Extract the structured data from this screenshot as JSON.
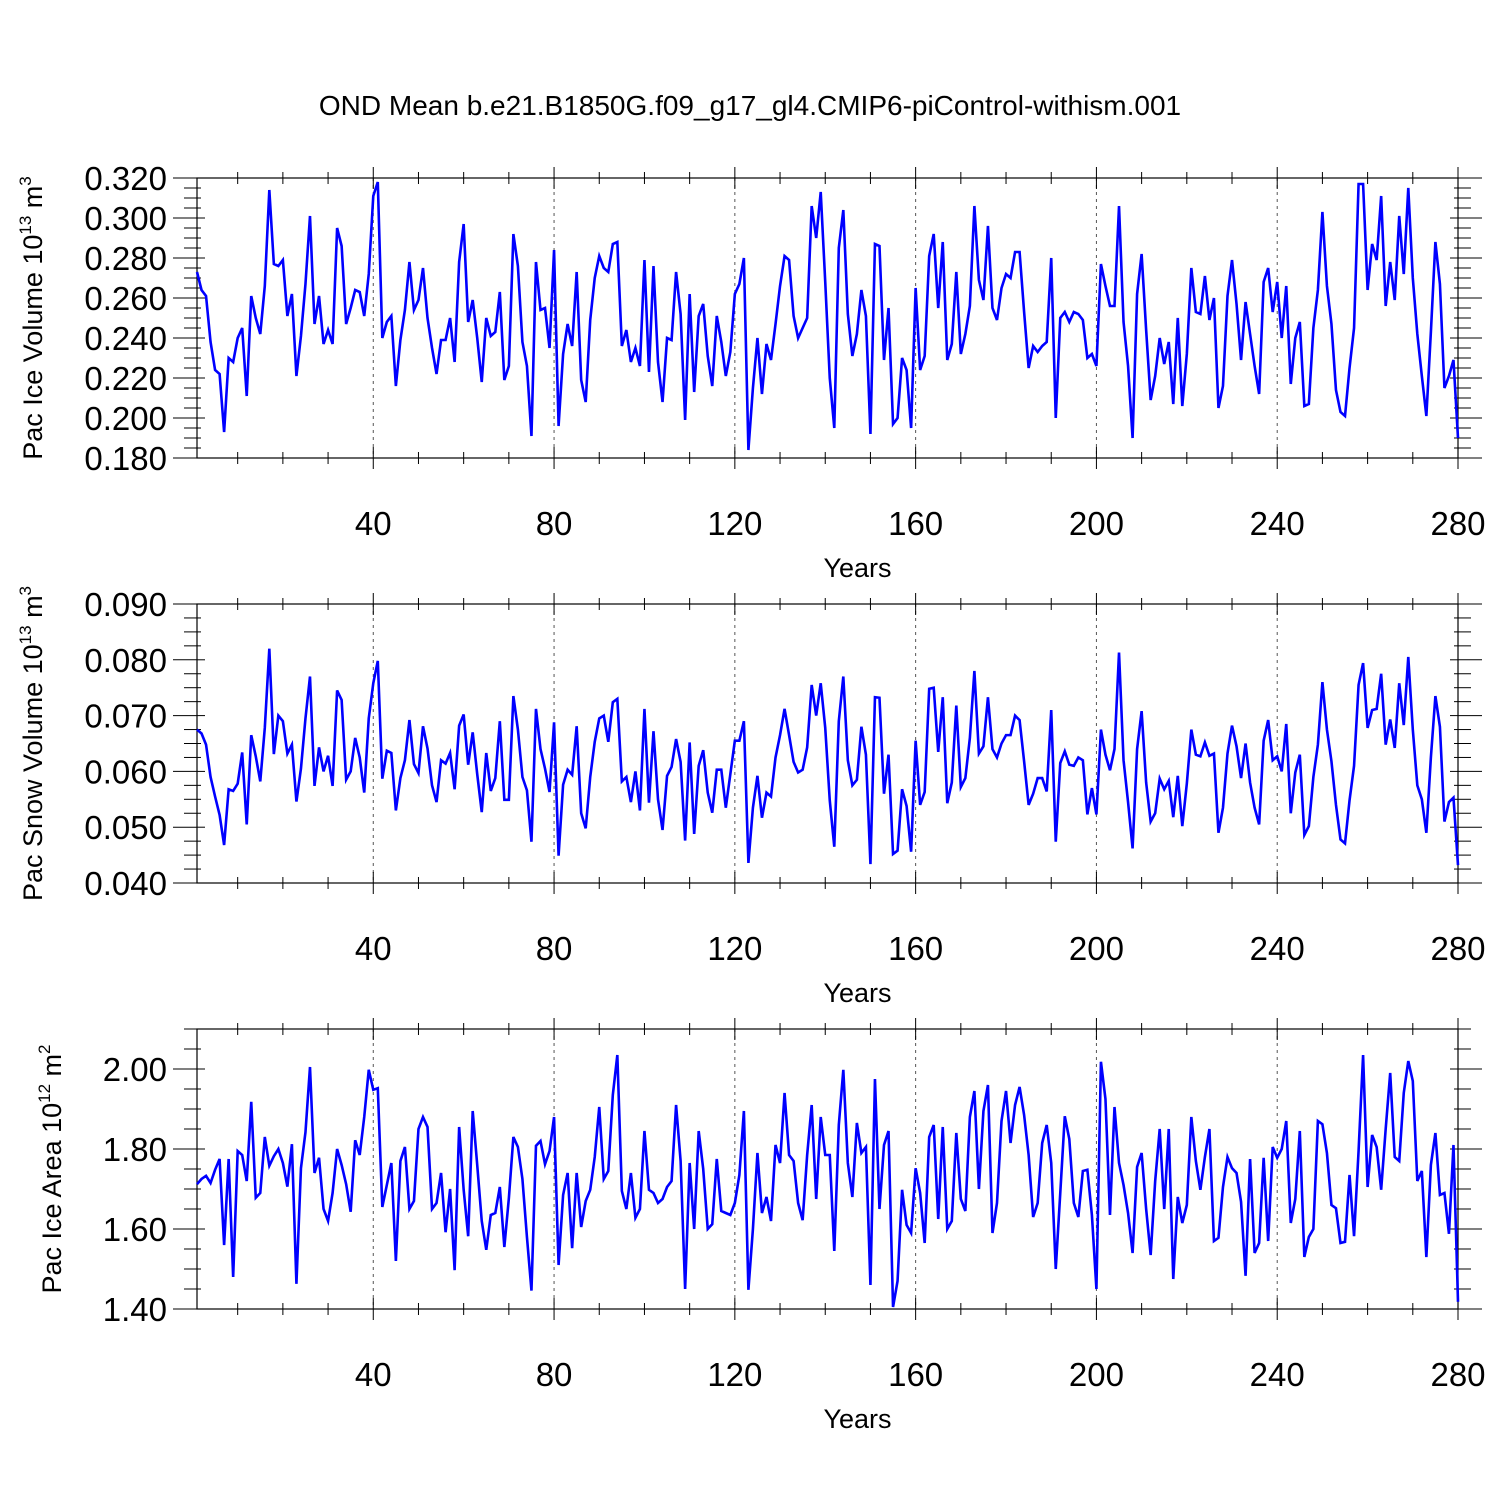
{
  "title": "OND Mean b.e21.B1850G.f09_g17_gl4.CMIP6-piControl-withism.001",
  "chart_data": [
    {
      "type": "line",
      "xlabel": "Years",
      "ylabel": {
        "main": "Pac Ice Volume 10",
        "exponent": "13",
        "unit": " m",
        "unit_exponent": "3"
      },
      "xlim": [
        1,
        280
      ],
      "ylim": [
        0.18,
        0.32
      ],
      "xticks": [
        40,
        80,
        120,
        160,
        200,
        240,
        280
      ],
      "yticks": [
        0.18,
        0.2,
        0.22,
        0.24,
        0.26,
        0.28,
        0.3,
        0.32
      ],
      "yticklabels": [
        "0.180",
        "0.200",
        "0.220",
        "0.240",
        "0.260",
        "0.280",
        "0.300",
        "0.320"
      ],
      "grid": "dashed vertical at major x ticks",
      "color": "#0000ff",
      "x_start": 1,
      "values": [
        0.273,
        0.264,
        0.261,
        0.238,
        0.224,
        0.222,
        0.193,
        0.23,
        0.228,
        0.24,
        0.245,
        0.211,
        0.261,
        0.25,
        0.242,
        0.266,
        0.314,
        0.277,
        0.276,
        0.279,
        0.251,
        0.262,
        0.221,
        0.241,
        0.267,
        0.301,
        0.247,
        0.261,
        0.237,
        0.244,
        0.237,
        0.295,
        0.286,
        0.247,
        0.255,
        0.264,
        0.263,
        0.251,
        0.272,
        0.311,
        0.318,
        0.24,
        0.248,
        0.251,
        0.216,
        0.239,
        0.254,
        0.278,
        0.254,
        0.259,
        0.275,
        0.25,
        0.235,
        0.222,
        0.239,
        0.239,
        0.25,
        0.228,
        0.278,
        0.297,
        0.248,
        0.259,
        0.24,
        0.218,
        0.25,
        0.241,
        0.243,
        0.263,
        0.219,
        0.226,
        0.292,
        0.276,
        0.238,
        0.226,
        0.191,
        0.278,
        0.254,
        0.255,
        0.235,
        0.284,
        0.196,
        0.232,
        0.247,
        0.236,
        0.273,
        0.219,
        0.208,
        0.249,
        0.27,
        0.281,
        0.275,
        0.273,
        0.287,
        0.288,
        0.236,
        0.244,
        0.228,
        0.235,
        0.226,
        0.279,
        0.223,
        0.276,
        0.228,
        0.208,
        0.24,
        0.239,
        0.273,
        0.252,
        0.199,
        0.262,
        0.213,
        0.251,
        0.257,
        0.231,
        0.216,
        0.251,
        0.238,
        0.221,
        0.233,
        0.262,
        0.267,
        0.28,
        0.184,
        0.215,
        0.24,
        0.212,
        0.237,
        0.229,
        0.247,
        0.266,
        0.281,
        0.279,
        0.251,
        0.24,
        0.245,
        0.25,
        0.306,
        0.29,
        0.313,
        0.268,
        0.22,
        0.195,
        0.285,
        0.304,
        0.252,
        0.231,
        0.242,
        0.264,
        0.251,
        0.192,
        0.287,
        0.286,
        0.229,
        0.255,
        0.197,
        0.2,
        0.23,
        0.224,
        0.195,
        0.265,
        0.224,
        0.231,
        0.281,
        0.292,
        0.255,
        0.288,
        0.229,
        0.237,
        0.273,
        0.232,
        0.242,
        0.256,
        0.306,
        0.269,
        0.259,
        0.296,
        0.255,
        0.249,
        0.265,
        0.272,
        0.27,
        0.283,
        0.283,
        0.253,
        0.225,
        0.236,
        0.233,
        0.236,
        0.238,
        0.28,
        0.2,
        0.25,
        0.253,
        0.248,
        0.253,
        0.252,
        0.249,
        0.23,
        0.232,
        0.226,
        0.277,
        0.266,
        0.256,
        0.256,
        0.306,
        0.248,
        0.226,
        0.19,
        0.262,
        0.282,
        0.244,
        0.209,
        0.221,
        0.24,
        0.227,
        0.238,
        0.207,
        0.25,
        0.206,
        0.232,
        0.275,
        0.253,
        0.252,
        0.271,
        0.249,
        0.26,
        0.205,
        0.216,
        0.261,
        0.279,
        0.257,
        0.229,
        0.258,
        0.242,
        0.226,
        0.212,
        0.268,
        0.275,
        0.253,
        0.268,
        0.24,
        0.266,
        0.217,
        0.24,
        0.248,
        0.206,
        0.207,
        0.245,
        0.264,
        0.303,
        0.266,
        0.247,
        0.214,
        0.203,
        0.201,
        0.225,
        0.245,
        0.317,
        0.317,
        0.264,
        0.287,
        0.279,
        0.311,
        0.256,
        0.278,
        0.259,
        0.301,
        0.272,
        0.315,
        0.27,
        0.242,
        0.221,
        0.201,
        0.243,
        0.288,
        0.267,
        0.215,
        0.221,
        0.229,
        0.19
      ]
    },
    {
      "type": "line",
      "xlabel": "Years",
      "ylabel": {
        "main": "Pac Snow Volume 10",
        "exponent": "13",
        "unit": " m",
        "unit_exponent": "3"
      },
      "xlim": [
        1,
        280
      ],
      "ylim": [
        0.04,
        0.09
      ],
      "xticks": [
        40,
        80,
        120,
        160,
        200,
        240,
        280
      ],
      "yticks": [
        0.04,
        0.05,
        0.06,
        0.07,
        0.08,
        0.09
      ],
      "yticklabels": [
        "0.040",
        "0.050",
        "0.060",
        "0.070",
        "0.080",
        "0.090"
      ],
      "grid": "dashed vertical at major x ticks",
      "color": "#0000ff",
      "x_start": 1,
      "values": [
        0.0675,
        0.0668,
        0.0648,
        0.059,
        0.0555,
        0.0522,
        0.0468,
        0.0568,
        0.0565,
        0.0578,
        0.0634,
        0.0505,
        0.0665,
        0.0627,
        0.0582,
        0.0678,
        0.082,
        0.0631,
        0.07,
        0.069,
        0.0632,
        0.0648,
        0.0546,
        0.0605,
        0.0695,
        0.077,
        0.0574,
        0.0643,
        0.06,
        0.0628,
        0.0574,
        0.0745,
        0.0728,
        0.0585,
        0.06,
        0.066,
        0.0625,
        0.0562,
        0.0695,
        0.0758,
        0.0798,
        0.0587,
        0.0637,
        0.0633,
        0.053,
        0.0588,
        0.062,
        0.0692,
        0.0613,
        0.0597,
        0.0681,
        0.0641,
        0.0575,
        0.0545,
        0.062,
        0.0614,
        0.0633,
        0.0568,
        0.0682,
        0.0702,
        0.0612,
        0.067,
        0.0595,
        0.0527,
        0.0633,
        0.0565,
        0.0588,
        0.069,
        0.0549,
        0.0549,
        0.0735,
        0.0675,
        0.059,
        0.0566,
        0.0474,
        0.0712,
        0.064,
        0.0605,
        0.0563,
        0.0688,
        0.0449,
        0.0576,
        0.0603,
        0.0594,
        0.0681,
        0.0525,
        0.0498,
        0.059,
        0.0653,
        0.0695,
        0.07,
        0.0653,
        0.0724,
        0.073,
        0.0582,
        0.059,
        0.0545,
        0.06,
        0.053,
        0.0712,
        0.0544,
        0.0672,
        0.055,
        0.0495,
        0.0592,
        0.0608,
        0.0658,
        0.0617,
        0.0476,
        0.0652,
        0.0488,
        0.061,
        0.0638,
        0.0562,
        0.0526,
        0.0603,
        0.0603,
        0.0535,
        0.0595,
        0.0655,
        0.0655,
        0.069,
        0.0436,
        0.0535,
        0.0592,
        0.0517,
        0.0562,
        0.0555,
        0.0625,
        0.0665,
        0.0712,
        0.0665,
        0.0617,
        0.0598,
        0.0603,
        0.0643,
        0.0755,
        0.07,
        0.0758,
        0.0678,
        0.0548,
        0.0465,
        0.069,
        0.077,
        0.062,
        0.0575,
        0.0585,
        0.068,
        0.063,
        0.0434,
        0.0733,
        0.0732,
        0.056,
        0.063,
        0.0452,
        0.0458,
        0.0568,
        0.0538,
        0.0456,
        0.0655,
        0.054,
        0.0563,
        0.0748,
        0.075,
        0.0635,
        0.0733,
        0.0543,
        0.058,
        0.0718,
        0.0572,
        0.0588,
        0.066,
        0.078,
        0.0632,
        0.0645,
        0.0733,
        0.064,
        0.0625,
        0.065,
        0.0665,
        0.0665,
        0.07,
        0.0692,
        0.0618,
        0.054,
        0.056,
        0.0588,
        0.0588,
        0.0564,
        0.071,
        0.0474,
        0.0615,
        0.0636,
        0.0612,
        0.061,
        0.0625,
        0.062,
        0.0523,
        0.057,
        0.0523,
        0.0675,
        0.063,
        0.0602,
        0.064,
        0.0813,
        0.062,
        0.0545,
        0.0462,
        0.064,
        0.0708,
        0.058,
        0.051,
        0.0525,
        0.0587,
        0.0568,
        0.0583,
        0.0518,
        0.0592,
        0.0502,
        0.0578,
        0.0675,
        0.063,
        0.0627,
        0.0652,
        0.0628,
        0.0632,
        0.049,
        0.0535,
        0.0632,
        0.0682,
        0.0645,
        0.0588,
        0.065,
        0.058,
        0.0535,
        0.0505,
        0.0655,
        0.0692,
        0.062,
        0.0627,
        0.06,
        0.0685,
        0.0525,
        0.0598,
        0.063,
        0.0486,
        0.0502,
        0.059,
        0.0648,
        0.076,
        0.0675,
        0.0618,
        0.054,
        0.0478,
        0.0471,
        0.0548,
        0.061,
        0.0755,
        0.0794,
        0.0678,
        0.071,
        0.0712,
        0.0775,
        0.0648,
        0.0693,
        0.0642,
        0.0758,
        0.0683,
        0.0805,
        0.0675,
        0.0575,
        0.055,
        0.049,
        0.0625,
        0.0735,
        0.068,
        0.051,
        0.0545,
        0.0553,
        0.0432
      ]
    },
    {
      "type": "line",
      "xlabel": "Years",
      "ylabel": {
        "main": "Pac Ice Area 10",
        "exponent": "12",
        "unit": " m",
        "unit_exponent": "2"
      },
      "xlim": [
        1,
        280
      ],
      "ylim": [
        1.4,
        2.1
      ],
      "xticks": [
        40,
        80,
        120,
        160,
        200,
        240,
        280
      ],
      "yticks": [
        1.4,
        1.6,
        1.8,
        2.0
      ],
      "yticklabels": [
        "1.40",
        "1.60",
        "1.80",
        "2.00"
      ],
      "grid": "dashed vertical at major x ticks",
      "color": "#0000ff",
      "x_start": 1,
      "values": [
        1.712,
        1.725,
        1.733,
        1.715,
        1.748,
        1.775,
        1.56,
        1.775,
        1.48,
        1.795,
        1.785,
        1.72,
        1.918,
        1.678,
        1.69,
        1.83,
        1.758,
        1.782,
        1.8,
        1.765,
        1.706,
        1.812,
        1.463,
        1.752,
        1.842,
        2.005,
        1.74,
        1.778,
        1.65,
        1.62,
        1.69,
        1.8,
        1.76,
        1.712,
        1.643,
        1.822,
        1.785,
        1.88,
        1.998,
        1.948,
        1.952,
        1.655,
        1.71,
        1.765,
        1.52,
        1.77,
        1.805,
        1.65,
        1.67,
        1.85,
        1.88,
        1.855,
        1.65,
        1.665,
        1.74,
        1.592,
        1.7,
        1.497,
        1.855,
        1.698,
        1.582,
        1.895,
        1.76,
        1.62,
        1.548,
        1.635,
        1.64,
        1.705,
        1.555,
        1.677,
        1.83,
        1.805,
        1.725,
        1.58,
        1.446,
        1.808,
        1.82,
        1.762,
        1.795,
        1.88,
        1.51,
        1.685,
        1.74,
        1.552,
        1.74,
        1.605,
        1.67,
        1.698,
        1.78,
        1.905,
        1.725,
        1.745,
        1.935,
        2.035,
        1.695,
        1.65,
        1.74,
        1.628,
        1.65,
        1.845,
        1.698,
        1.69,
        1.665,
        1.675,
        1.705,
        1.72,
        1.91,
        1.77,
        1.45,
        1.765,
        1.6,
        1.845,
        1.75,
        1.6,
        1.612,
        1.775,
        1.645,
        1.64,
        1.635,
        1.665,
        1.735,
        1.895,
        1.448,
        1.6,
        1.79,
        1.64,
        1.68,
        1.62,
        1.81,
        1.765,
        1.94,
        1.785,
        1.77,
        1.665,
        1.622,
        1.785,
        1.91,
        1.675,
        1.88,
        1.785,
        1.785,
        1.545,
        1.86,
        1.998,
        1.765,
        1.68,
        1.865,
        1.79,
        1.805,
        1.46,
        1.975,
        1.65,
        1.81,
        1.845,
        1.405,
        1.47,
        1.698,
        1.61,
        1.59,
        1.752,
        1.69,
        1.565,
        1.83,
        1.86,
        1.625,
        1.855,
        1.6,
        1.62,
        1.84,
        1.675,
        1.645,
        1.88,
        1.945,
        1.7,
        1.895,
        1.96,
        1.59,
        1.665,
        1.87,
        1.945,
        1.815,
        1.91,
        1.955,
        1.885,
        1.785,
        1.63,
        1.665,
        1.815,
        1.86,
        1.765,
        1.5,
        1.69,
        1.882,
        1.825,
        1.665,
        1.63,
        1.745,
        1.748,
        1.635,
        1.45,
        2.018,
        1.925,
        1.635,
        1.905,
        1.765,
        1.71,
        1.64,
        1.54,
        1.755,
        1.79,
        1.65,
        1.535,
        1.72,
        1.85,
        1.65,
        1.85,
        1.475,
        1.68,
        1.615,
        1.66,
        1.88,
        1.77,
        1.698,
        1.78,
        1.85,
        1.57,
        1.578,
        1.705,
        1.78,
        1.752,
        1.74,
        1.668,
        1.483,
        1.775,
        1.54,
        1.565,
        1.778,
        1.57,
        1.805,
        1.778,
        1.8,
        1.87,
        1.615,
        1.675,
        1.845,
        1.53,
        1.58,
        1.6,
        1.87,
        1.862,
        1.79,
        1.66,
        1.652,
        1.565,
        1.568,
        1.735,
        1.582,
        1.795,
        2.035,
        1.705,
        1.835,
        1.805,
        1.698,
        1.85,
        1.99,
        1.78,
        1.77,
        1.94,
        2.02,
        1.97,
        1.72,
        1.745,
        1.53,
        1.76,
        1.84,
        1.685,
        1.69,
        1.588,
        1.81,
        1.418
      ]
    }
  ]
}
